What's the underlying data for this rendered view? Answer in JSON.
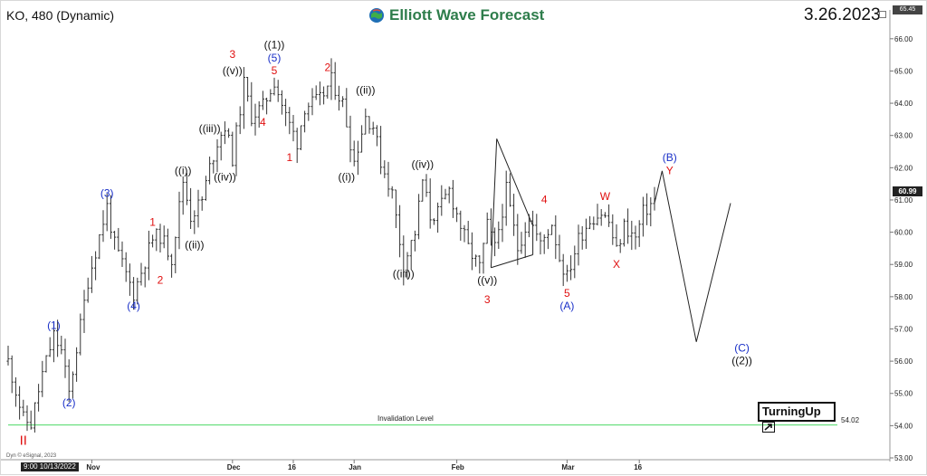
{
  "header": {
    "symbol": "KO, 480 (Dynamic)",
    "brand": "Elliott Wave Forecast",
    "date": "3.26.2023"
  },
  "colors": {
    "accent_green": "#2e7d4b",
    "wave_red": "#e01010",
    "wave_blue": "#1a30c8",
    "wave_black": "#111111",
    "invalidation_line": "#4cd964"
  },
  "footer": {
    "credit": "Dyn © eSignal, 2023",
    "start_label": "9:00 10/13/2022",
    "logo": "TurningUp",
    "logo_icon": "arrow-up-right-icon"
  },
  "chart_data": {
    "type": "ohlc-bar",
    "y_axis": {
      "min": 53,
      "max": 66.5,
      "ticks": [
        53.0,
        54.0,
        55.0,
        56.0,
        57.0,
        58.0,
        59.0,
        60.0,
        61.0,
        62.0,
        63.0,
        64.0,
        65.0,
        66.0
      ],
      "tick_labels": [
        "53.00",
        "54.00",
        "55.00",
        "56.00",
        "57.00",
        "58.00",
        "59.00",
        "60.00",
        "61.00",
        "62.00",
        "63.00",
        "64.00",
        "65.00",
        "66.00"
      ],
      "high_label": 65.45,
      "high_label_text": "65.45"
    },
    "x_axis": {
      "labels": [
        "Nov",
        "Dec",
        "16",
        "Jan",
        "Feb",
        "Mar",
        "16"
      ],
      "label_index": [
        22,
        59,
        75,
        91,
        118,
        147,
        166
      ],
      "bar_count": 176
    },
    "last_price": 60.99,
    "last_price_text": "60.99",
    "invalidation": {
      "label": "Invalidation Level",
      "value": 54.02,
      "value_text": "54.02"
    },
    "price_path": [
      [
        0,
        56.0
      ],
      [
        4,
        54.2
      ],
      [
        6,
        54.05
      ],
      [
        9,
        55.6
      ],
      [
        12,
        56.8
      ],
      [
        14,
        56.3
      ],
      [
        16,
        55.0
      ],
      [
        21,
        58.5
      ],
      [
        26,
        60.8
      ],
      [
        28,
        59.6
      ],
      [
        30,
        59.0
      ],
      [
        33,
        58.1
      ],
      [
        38,
        59.8
      ],
      [
        40,
        59.9
      ],
      [
        43,
        59.2
      ],
      [
        46,
        61.6
      ],
      [
        48,
        60.5
      ],
      [
        51,
        61.0
      ],
      [
        53,
        62.0
      ],
      [
        55,
        62.8
      ],
      [
        57,
        63.3
      ],
      [
        59,
        62.3
      ],
      [
        62,
        64.6
      ],
      [
        64,
        63.6
      ],
      [
        67,
        63.9
      ],
      [
        70,
        64.7
      ],
      [
        73,
        63.6
      ],
      [
        76,
        62.8
      ],
      [
        78,
        63.9
      ],
      [
        82,
        64.1
      ],
      [
        85,
        64.7
      ],
      [
        88,
        64.0
      ],
      [
        91,
        62.2
      ],
      [
        94,
        63.6
      ],
      [
        96,
        63.3
      ],
      [
        98,
        62.2
      ],
      [
        101,
        61.2
      ],
      [
        104,
        59.0
      ],
      [
        107,
        60.0
      ],
      [
        109,
        61.6
      ],
      [
        111,
        60.5
      ],
      [
        113,
        60.6
      ],
      [
        116,
        61.3
      ],
      [
        119,
        60.2
      ],
      [
        121,
        59.5
      ],
      [
        124,
        58.9
      ],
      [
        126,
        60.2
      ],
      [
        128,
        59.5
      ],
      [
        131,
        61.3
      ],
      [
        134,
        59.5
      ],
      [
        137,
        60.5
      ],
      [
        140,
        59.6
      ],
      [
        143,
        60.3
      ],
      [
        145,
        59.2
      ],
      [
        147,
        58.6
      ],
      [
        150,
        59.8
      ],
      [
        153,
        60.4
      ],
      [
        156,
        60.6
      ],
      [
        158,
        60.3
      ],
      [
        160,
        59.4
      ],
      [
        162,
        60.2
      ],
      [
        165,
        59.8
      ],
      [
        167,
        60.6
      ],
      [
        170,
        61.0
      ]
    ],
    "projection": [
      [
        170,
        60.9
      ],
      [
        172,
        61.9
      ],
      [
        181,
        56.6
      ],
      [
        190,
        60.9
      ]
    ],
    "triangle": [
      [
        127,
        58.9
      ],
      [
        128.5,
        62.9
      ],
      [
        138,
        60.2
      ],
      [
        138,
        59.3
      ]
    ],
    "annotations": [
      {
        "t": "II",
        "i": 4,
        "p": 53.4,
        "c": "red",
        "s": 15
      },
      {
        "t": "(1)",
        "i": 12,
        "p": 57.0,
        "c": "blue"
      },
      {
        "t": "(2)",
        "i": 16,
        "p": 54.6,
        "c": "blue"
      },
      {
        "t": "(3)",
        "i": 26,
        "p": 61.1,
        "c": "blue"
      },
      {
        "t": "(4)",
        "i": 33,
        "p": 57.6,
        "c": "blue"
      },
      {
        "t": "1",
        "i": 38,
        "p": 60.2,
        "c": "red"
      },
      {
        "t": "2",
        "i": 40,
        "p": 58.4,
        "c": "red"
      },
      {
        "t": "((i))",
        "i": 46,
        "p": 61.8,
        "c": "black"
      },
      {
        "t": "((ii))",
        "i": 49,
        "p": 59.5,
        "c": "black"
      },
      {
        "t": "((iii))",
        "i": 53,
        "p": 63.1,
        "c": "black"
      },
      {
        "t": "((iv))",
        "i": 57,
        "p": 61.6,
        "c": "black"
      },
      {
        "t": "((v))",
        "i": 59,
        "p": 64.9,
        "c": "black"
      },
      {
        "t": "3",
        "i": 59,
        "p": 65.4,
        "c": "red"
      },
      {
        "t": "4",
        "i": 67,
        "p": 63.3,
        "c": "red"
      },
      {
        "t": "5",
        "i": 70,
        "p": 64.9,
        "c": "red"
      },
      {
        "t": "(5)",
        "i": 70,
        "p": 65.3,
        "c": "blue"
      },
      {
        "t": "((1))",
        "i": 70,
        "p": 65.7,
        "c": "black"
      },
      {
        "t": "1",
        "i": 74,
        "p": 62.2,
        "c": "red"
      },
      {
        "t": "2",
        "i": 84,
        "p": 65.0,
        "c": "red"
      },
      {
        "t": "((i))",
        "i": 89,
        "p": 61.6,
        "c": "black"
      },
      {
        "t": "((ii))",
        "i": 94,
        "p": 64.3,
        "c": "black"
      },
      {
        "t": "((iii))",
        "i": 104,
        "p": 58.6,
        "c": "black"
      },
      {
        "t": "((iv))",
        "i": 109,
        "p": 62.0,
        "c": "black"
      },
      {
        "t": "((v))",
        "i": 126,
        "p": 58.4,
        "c": "black"
      },
      {
        "t": "3",
        "i": 126,
        "p": 57.8,
        "c": "red"
      },
      {
        "t": "4",
        "i": 141,
        "p": 60.9,
        "c": "red"
      },
      {
        "t": "5",
        "i": 147,
        "p": 58.0,
        "c": "red"
      },
      {
        "t": "(A)",
        "i": 147,
        "p": 57.6,
        "c": "blue"
      },
      {
        "t": "W",
        "i": 157,
        "p": 61.0,
        "c": "red"
      },
      {
        "t": "X",
        "i": 160,
        "p": 58.9,
        "c": "red"
      },
      {
        "t": "(B)",
        "i": 174,
        "p": 62.2,
        "c": "blue"
      },
      {
        "t": "Y",
        "i": 174,
        "p": 61.8,
        "c": "red"
      },
      {
        "t": "(C)",
        "i": 193,
        "p": 56.3,
        "c": "blue"
      },
      {
        "t": "((2))",
        "i": 193,
        "p": 55.9,
        "c": "black"
      }
    ]
  }
}
